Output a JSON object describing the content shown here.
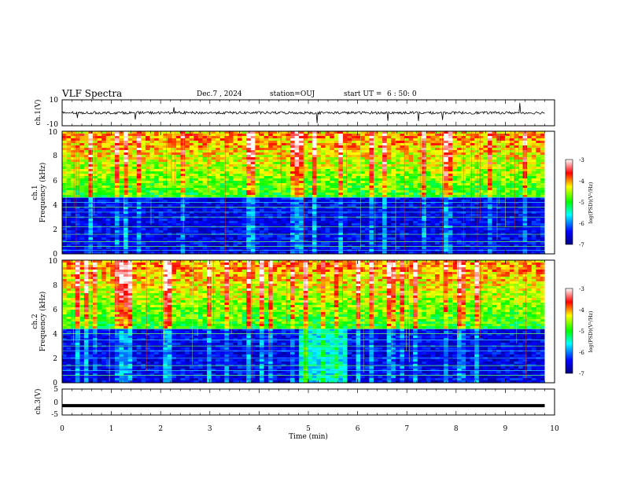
{
  "header": {
    "title": "VLF Spectra",
    "date": "Dec.7 , 2024",
    "station": "station=OUJ",
    "start_label": "start UT =",
    "start_time": "6 : 50: 0"
  },
  "chart_data": [
    {
      "type": "line",
      "panel": "ch1-waveform",
      "ylabel": "ch.1(V)",
      "ylim": [
        -10,
        10
      ],
      "y_ticks": [
        "10",
        "-10"
      ],
      "baseline": 0,
      "xlim": [
        0,
        10
      ]
    },
    {
      "type": "heatmap",
      "panel": "ch1-spectrogram",
      "ylabel_line1": "ch.1",
      "ylabel_line2": "Frequency (kHz)",
      "ylim": [
        0,
        10
      ],
      "y_ticks": [
        "0",
        "2",
        "4",
        "6",
        "8",
        "10"
      ],
      "xlim": [
        0,
        9.8
      ],
      "colorbar": {
        "label": "log(PSD)(V²/Hz)",
        "range": [
          -7,
          -3
        ],
        "ticks": [
          "-3",
          "-4",
          "-5",
          "-6",
          "-7"
        ]
      },
      "bright_bands_khz": [
        0.3,
        0.6,
        1.0,
        1.6,
        2.2,
        3.0,
        3.4,
        3.8,
        4.2,
        4.6
      ]
    },
    {
      "type": "heatmap",
      "panel": "ch2-spectrogram",
      "ylabel_line1": "ch.2",
      "ylabel_line2": "Frequency (kHz)",
      "ylim": [
        0,
        10
      ],
      "y_ticks": [
        "0",
        "2",
        "4",
        "6",
        "8",
        "10"
      ],
      "xlim": [
        0,
        9.8
      ],
      "colorbar": {
        "label": "log(PSD)(V²/Hz)",
        "range": [
          -7,
          -3
        ],
        "ticks": [
          "-3",
          "-4",
          "-5",
          "-6",
          "-7"
        ]
      },
      "bright_bands_khz": [
        0.6,
        1.0,
        1.4,
        2.0,
        2.6,
        3.0,
        3.5,
        4.0,
        4.4
      ]
    },
    {
      "type": "line",
      "panel": "ch3-waveform",
      "ylabel": "ch.3(V)",
      "ylim": [
        -5,
        5
      ],
      "y_ticks": [
        "5",
        "0",
        "-5"
      ],
      "values": {
        "x": [
          0,
          9.8
        ],
        "y": [
          -1.4,
          -1.4
        ]
      },
      "xlabel": "Time (min)",
      "xlim": [
        0,
        10
      ],
      "x_ticks": [
        "0",
        "1",
        "2",
        "3",
        "4",
        "5",
        "6",
        "7",
        "8",
        "9",
        "10"
      ]
    }
  ]
}
